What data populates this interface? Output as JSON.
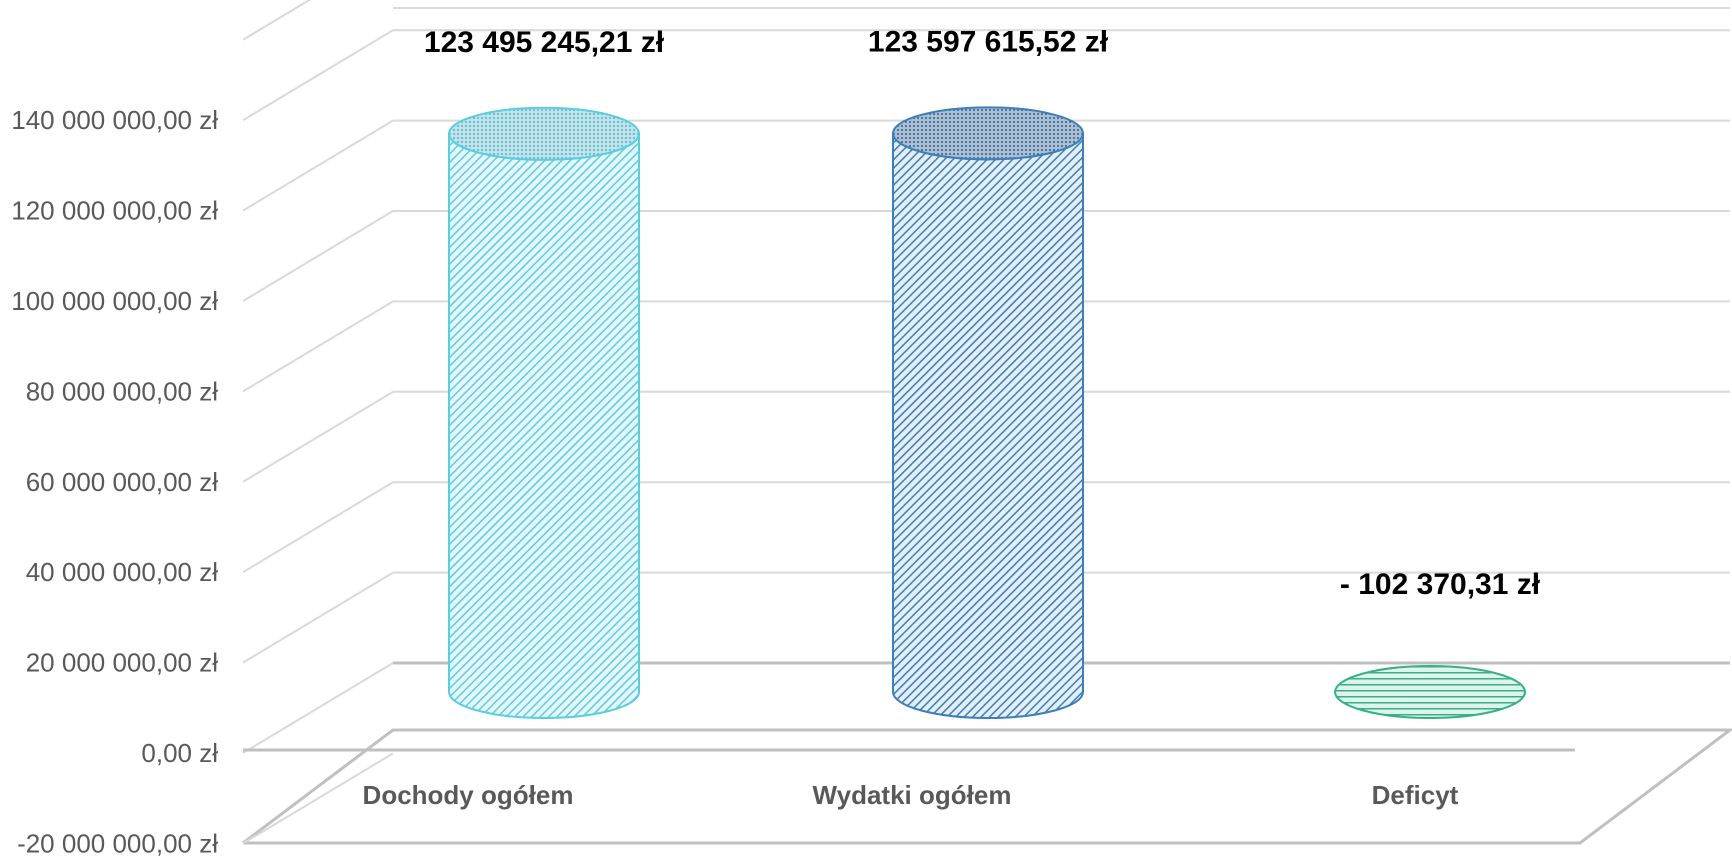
{
  "chart_data": {
    "type": "bar",
    "style": "3d-cylinder",
    "categories": [
      "Dochody ogółem",
      "Wydatki ogółem",
      "Deficyt"
    ],
    "values": [
      123495245.21,
      123597615.52,
      -102370.31
    ],
    "data_labels": [
      "123 495 245,21 zł",
      "123 597 615,52 zł",
      "- 102 370,31 zł"
    ],
    "ylim": [
      -20000000,
      140000000
    ],
    "y_ticks": [
      -20000000,
      0,
      20000000,
      40000000,
      60000000,
      80000000,
      100000000,
      120000000,
      140000000
    ],
    "y_tick_labels": [
      "-20 000 000,00 zł",
      "0,00 zł",
      "20 000 000,00 zł",
      "40 000 000,00 zł",
      "60 000 000,00 zł",
      "80 000 000,00 zł",
      "100 000 000,00 zł",
      "120 000 000,00 zł",
      "140 000 000,00 zł"
    ],
    "colors": [
      "#5bcde0",
      "#3d7fb8",
      "#35b088"
    ],
    "grid": true,
    "legend": "none",
    "title": "",
    "xlabel": "",
    "ylabel": ""
  }
}
